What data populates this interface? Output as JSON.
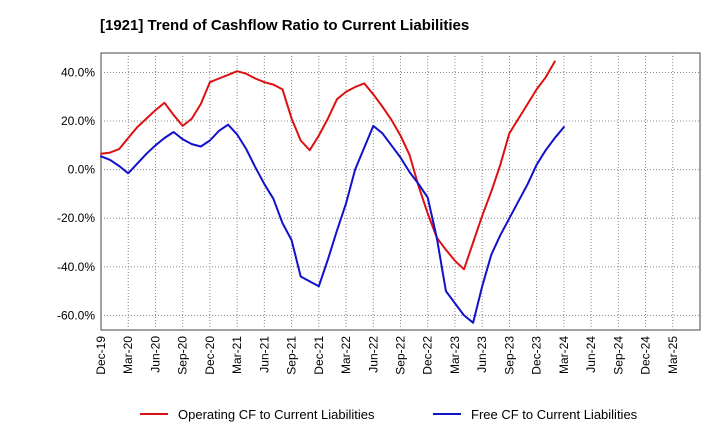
{
  "chart_data": {
    "type": "line",
    "title": "[1921]  Trend of Cashflow Ratio to Current Liabilities",
    "xlabel": "",
    "ylabel": "",
    "x_ticks": [
      "Dec-19",
      "Mar-20",
      "Jun-20",
      "Sep-20",
      "Dec-20",
      "Mar-21",
      "Jun-21",
      "Sep-21",
      "Dec-21",
      "Mar-22",
      "Jun-22",
      "Sep-22",
      "Dec-22",
      "Mar-23",
      "Jun-23",
      "Sep-23",
      "Dec-23",
      "Mar-24",
      "Jun-24",
      "Sep-24",
      "Dec-24",
      "Mar-25"
    ],
    "y_ticks": [
      "40.0%",
      "20.0%",
      "0.0%",
      "-20.0%",
      "-40.0%",
      "-60.0%"
    ],
    "y_tick_values": [
      40,
      20,
      0,
      -20,
      -40,
      -60
    ],
    "ylim": [
      -66,
      48
    ],
    "grid": true,
    "legend_position": "bottom",
    "series": [
      {
        "name": "Operating CF to Current Liabilities",
        "color": "#dd1111",
        "points": [
          [
            0,
            6.5
          ],
          [
            1,
            7
          ],
          [
            2,
            8.5
          ],
          [
            3,
            13
          ],
          [
            4,
            17.5
          ],
          [
            5,
            21
          ],
          [
            6,
            24.5
          ],
          [
            7,
            27.5
          ],
          [
            8,
            22.5
          ],
          [
            9,
            18
          ],
          [
            10,
            21
          ],
          [
            11,
            27
          ],
          [
            12,
            36
          ],
          [
            13,
            37.5
          ],
          [
            14,
            39
          ],
          [
            15,
            40.5
          ],
          [
            16,
            39.5
          ],
          [
            17,
            37.5
          ],
          [
            18,
            36
          ],
          [
            19,
            35
          ],
          [
            20,
            33
          ],
          [
            21,
            21
          ],
          [
            22,
            12
          ],
          [
            23,
            8
          ],
          [
            24,
            14
          ],
          [
            25,
            21
          ],
          [
            26,
            29
          ],
          [
            27,
            32
          ],
          [
            28,
            34
          ],
          [
            29,
            35.5
          ],
          [
            30,
            31
          ],
          [
            31,
            26
          ],
          [
            32,
            20.5
          ],
          [
            33,
            14
          ],
          [
            34,
            6
          ],
          [
            35,
            -7
          ],
          [
            36,
            -18
          ],
          [
            37,
            -28
          ],
          [
            38,
            -33
          ],
          [
            39,
            -37.5
          ],
          [
            40,
            -41
          ],
          [
            41,
            -30
          ],
          [
            42,
            -19
          ],
          [
            43,
            -9
          ],
          [
            44,
            2
          ],
          [
            45,
            15
          ],
          [
            46,
            21
          ],
          [
            47,
            27
          ],
          [
            48,
            33
          ],
          [
            49,
            38
          ],
          [
            50,
            44.5
          ]
        ]
      },
      {
        "name": "Free CF to Current Liabilities",
        "color": "#1111cc",
        "points": [
          [
            0,
            5.5
          ],
          [
            1,
            4
          ],
          [
            2,
            1.5
          ],
          [
            3,
            -1.5
          ],
          [
            4,
            2.5
          ],
          [
            5,
            6.5
          ],
          [
            6,
            10
          ],
          [
            7,
            13
          ],
          [
            8,
            15.5
          ],
          [
            9,
            12.5
          ],
          [
            10,
            10.5
          ],
          [
            11,
            9.5
          ],
          [
            12,
            12
          ],
          [
            13,
            16
          ],
          [
            14,
            18.5
          ],
          [
            15,
            14.5
          ],
          [
            16,
            8.5
          ],
          [
            17,
            1
          ],
          [
            18,
            -6
          ],
          [
            19,
            -12
          ],
          [
            20,
            -22
          ],
          [
            21,
            -29
          ],
          [
            22,
            -44
          ],
          [
            23,
            -46
          ],
          [
            24,
            -48
          ],
          [
            25,
            -37
          ],
          [
            26,
            -25
          ],
          [
            27,
            -14
          ],
          [
            28,
            0
          ],
          [
            29,
            9
          ],
          [
            30,
            18
          ],
          [
            31,
            15
          ],
          [
            32,
            10
          ],
          [
            33,
            5
          ],
          [
            34,
            -1
          ],
          [
            35,
            -6
          ],
          [
            36,
            -11.5
          ],
          [
            37,
            -28
          ],
          [
            38,
            -50
          ],
          [
            39,
            -55
          ],
          [
            40,
            -60
          ],
          [
            41,
            -63
          ],
          [
            42,
            -48
          ],
          [
            43,
            -35
          ],
          [
            44,
            -27
          ],
          [
            45,
            -20
          ],
          [
            46,
            -13
          ],
          [
            47,
            -6
          ],
          [
            48,
            2
          ],
          [
            49,
            8
          ],
          [
            50,
            13
          ],
          [
            51,
            17.5
          ]
        ]
      }
    ]
  }
}
